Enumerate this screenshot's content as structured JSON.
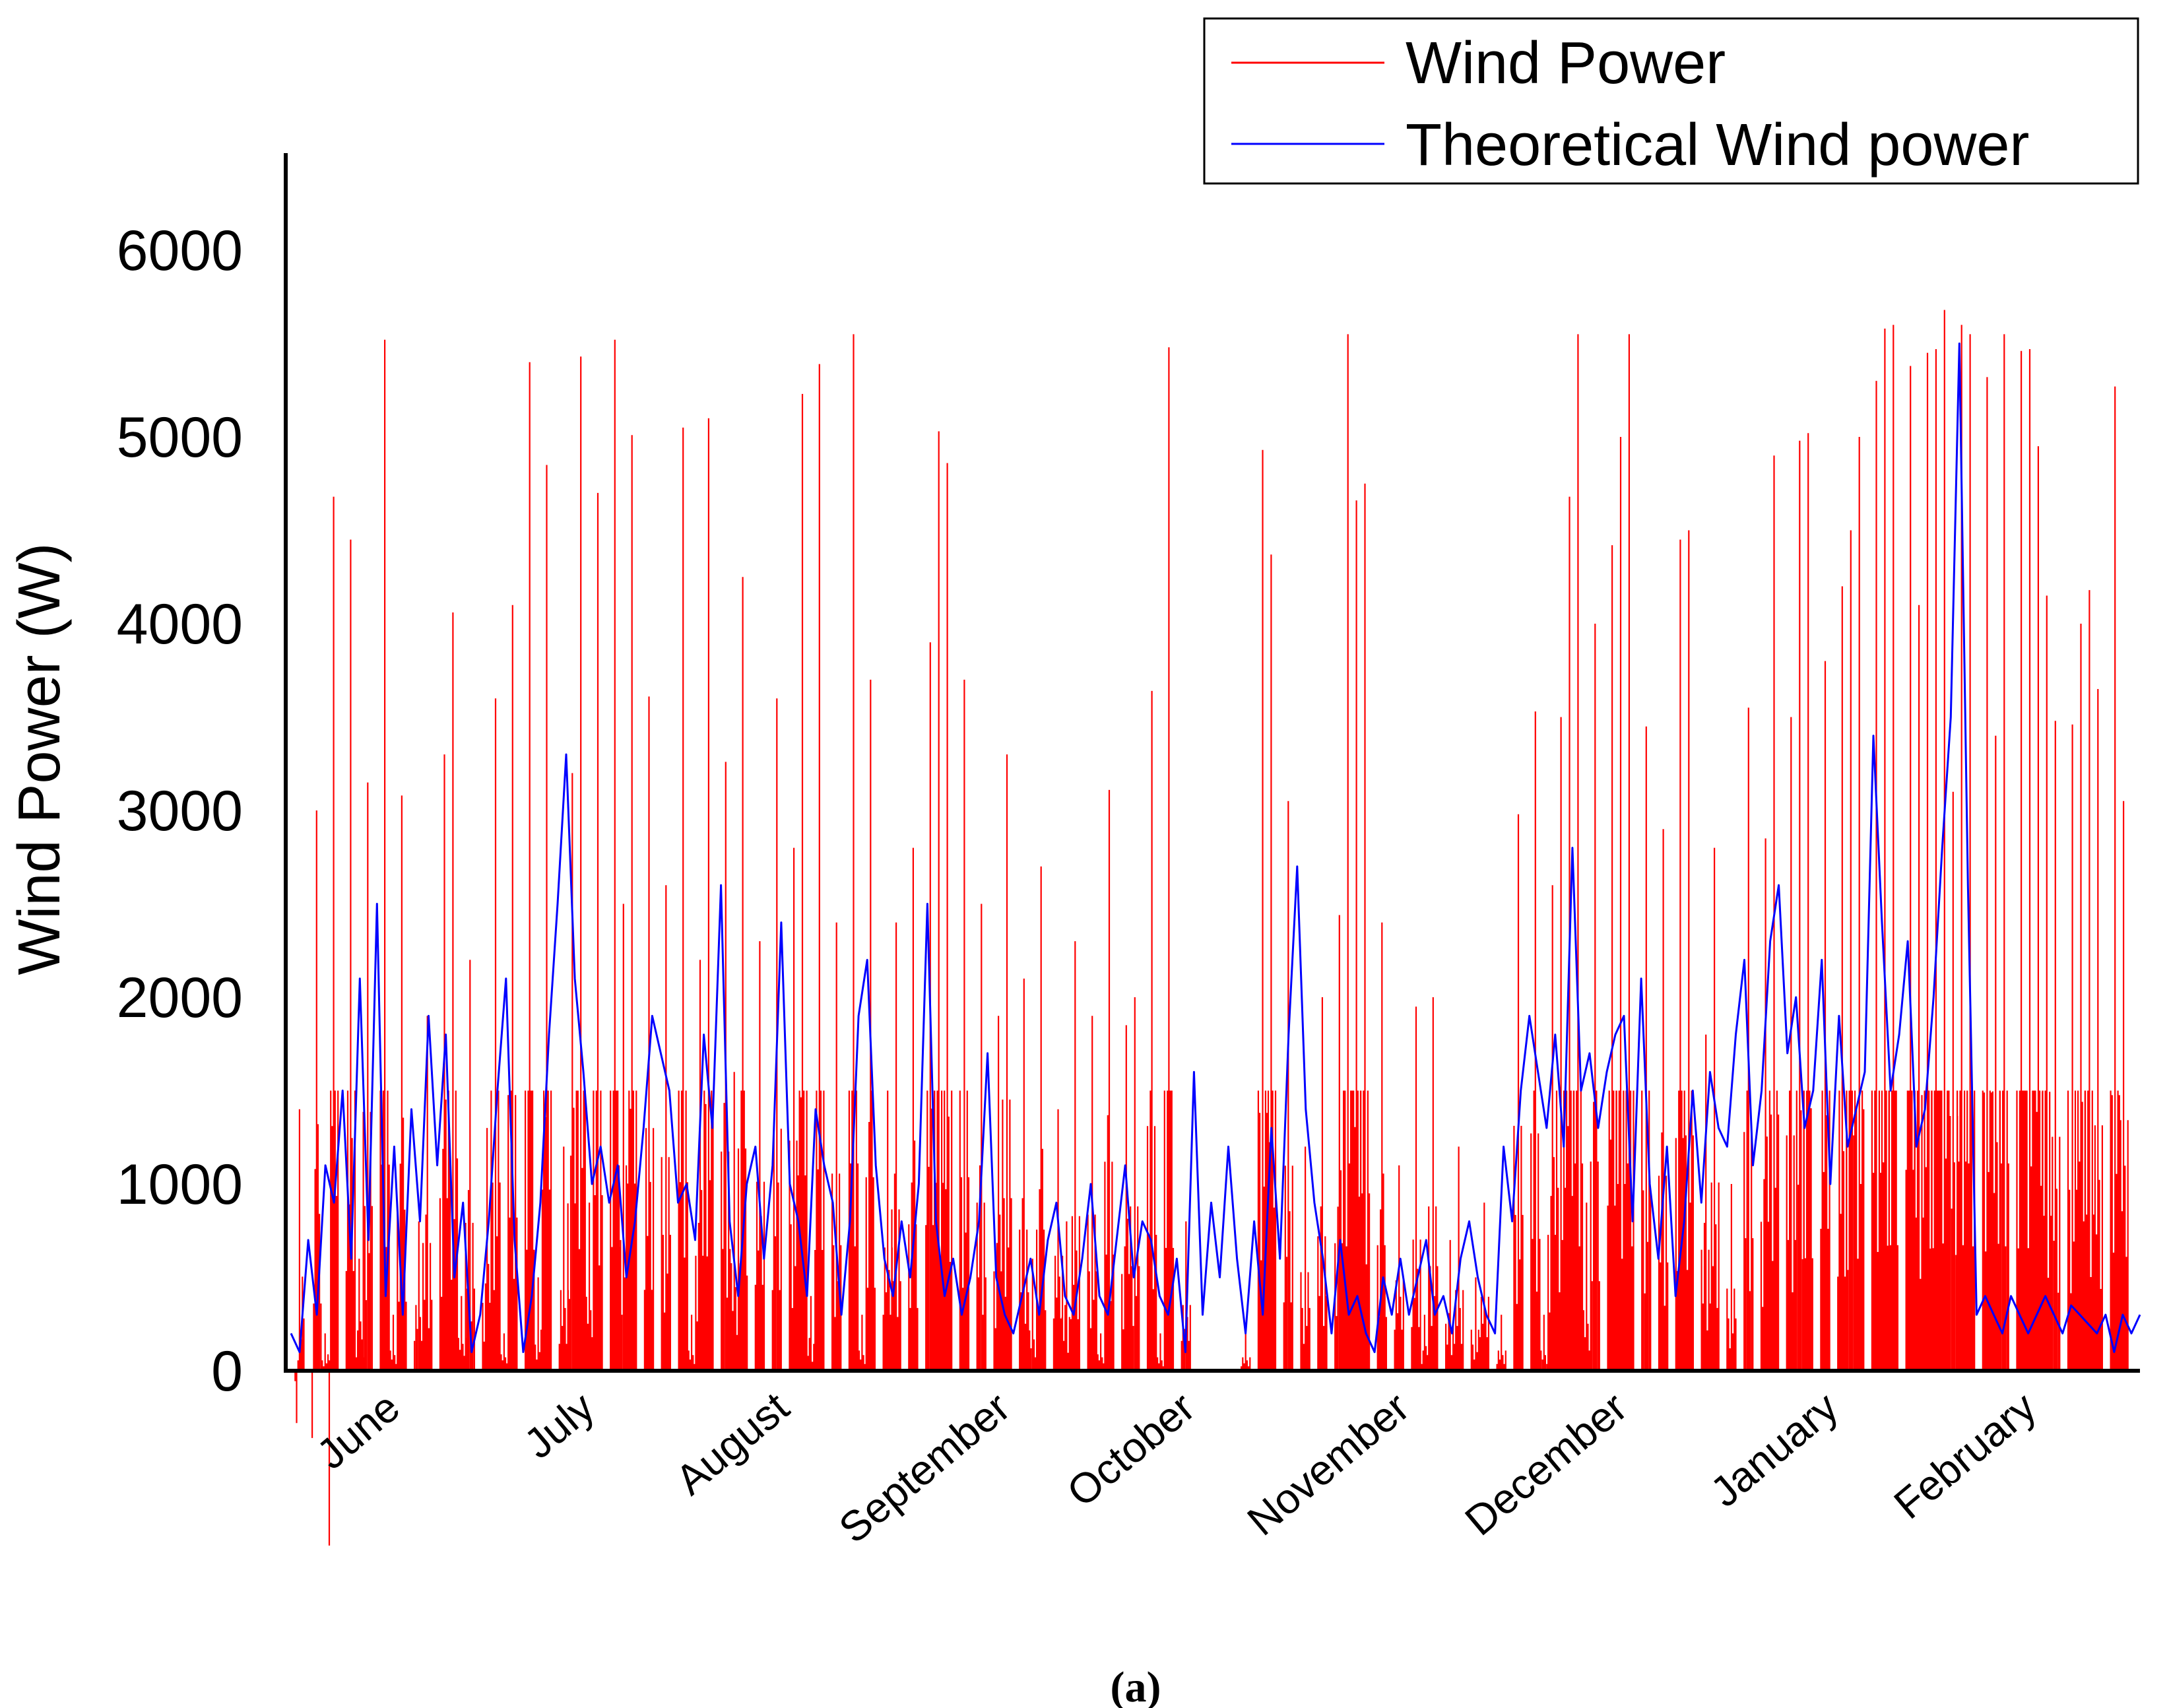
{
  "chart_data": {
    "type": "line",
    "ylabel": "Wind Power (W)",
    "ylim": [
      0,
      6500
    ],
    "yticks": [
      "0",
      "1000",
      "2000",
      "3000",
      "4000",
      "5000",
      "6000"
    ],
    "xlabel": "",
    "month_labels": [
      "June",
      "July",
      "August",
      "September",
      "October",
      "November",
      "December",
      "January",
      "February"
    ],
    "caption": "(a)",
    "legend_position": "top-right",
    "series": [
      {
        "name": "Wind Power",
        "color": "#ff0000",
        "description_level": "envelope",
        "monthly_peak_values": [
          5520,
          5500,
          5550,
          5480,
          5550,
          2000,
          5550,
          5600,
          5680
        ],
        "values": [
          0,
          1400,
          0,
          3000,
          200,
          4680,
          0,
          4450,
          600,
          3150,
          0,
          5520,
          300,
          3080,
          0,
          800,
          1900,
          0,
          3300,
          4060,
          400,
          2200,
          0,
          1300,
          3600,
          200,
          4100,
          0,
          5400,
          500,
          4850,
          0,
          1200,
          3200,
          5430,
          900,
          4700,
          0,
          5520,
          2500,
          5010,
          0,
          3610,
          0,
          2600,
          0,
          5050,
          300,
          2200,
          5100,
          0,
          3260,
          1600,
          4250,
          0,
          2300,
          0,
          3600,
          0,
          2800,
          5230,
          400,
          5390,
          0,
          2400,
          0,
          5550,
          300,
          3700,
          0,
          1500,
          2400,
          0,
          2800,
          0,
          3900,
          5030,
          4860,
          0,
          3700,
          0,
          2500,
          0,
          1900,
          3300,
          0,
          2100,
          600,
          2700,
          0,
          1400,
          800,
          2300,
          0,
          1900,
          200,
          3110,
          0,
          1850,
          2000,
          0,
          3640,
          200,
          5480,
          0,
          800,
          0,
          0,
          0,
          0,
          0,
          0,
          200,
          0,
          4930,
          4370,
          0,
          3050,
          0,
          1200,
          0,
          2000,
          0,
          2440,
          5550,
          4660,
          4750,
          0,
          2400,
          0,
          1100,
          0,
          1950,
          300,
          2000,
          0,
          700,
          1200,
          0,
          500,
          900,
          0,
          300,
          0,
          2980,
          0,
          3530,
          300,
          2600,
          3500,
          4680,
          5550,
          900,
          4000,
          0,
          4420,
          5000,
          5550,
          0,
          3450,
          0,
          2900,
          0,
          4450,
          4500,
          0,
          1800,
          2800,
          0,
          1000,
          0,
          3550,
          0,
          2850,
          4900,
          0,
          3500,
          4980,
          5020,
          0,
          3800,
          0,
          4200,
          4500,
          5000,
          0,
          5300,
          5580,
          5600,
          0,
          5380,
          4100,
          5450,
          5470,
          5680,
          3100,
          5600,
          5550,
          0,
          5320,
          3400,
          5550,
          0,
          5460,
          5470,
          4950,
          4150,
          3480,
          0,
          3460,
          4000,
          4180,
          3650,
          0,
          5270,
          3050,
          0
        ]
      },
      {
        "name": "Theoretical Wind power",
        "color": "#0000ff",
        "description_level": "envelope",
        "values": [
          200,
          100,
          700,
          300,
          1100,
          900,
          1500,
          600,
          2100,
          700,
          2500,
          400,
          1200,
          300,
          1400,
          800,
          1900,
          1100,
          1800,
          500,
          900,
          100,
          300,
          800,
          1500,
          2100,
          700,
          100,
          400,
          900,
          1800,
          2500,
          3300,
          2100,
          1600,
          1000,
          1200,
          900,
          1100,
          500,
          800,
          1300,
          1900,
          1700,
          1500,
          900,
          1000,
          700,
          1800,
          1300,
          2600,
          800,
          400,
          1000,
          1200,
          600,
          1100,
          2400,
          1000,
          800,
          400,
          1400,
          1100,
          900,
          300,
          800,
          1900,
          2200,
          1100,
          600,
          400,
          800,
          500,
          1000,
          2500,
          800,
          400,
          600,
          300,
          500,
          800,
          1700,
          500,
          300,
          200,
          400,
          600,
          300,
          700,
          900,
          400,
          300,
          600,
          1000,
          400,
          300,
          700,
          1100,
          500,
          800,
          700,
          400,
          300,
          600,
          100,
          1600,
          300,
          900,
          500,
          1200,
          600,
          200,
          800,
          300,
          1300,
          600,
          1800,
          2700,
          1400,
          900,
          600,
          200,
          700,
          300,
          400,
          200,
          100,
          500,
          300,
          600,
          300,
          500,
          700,
          300,
          400,
          200,
          600,
          800,
          500,
          300,
          200,
          1200,
          800,
          1500,
          1900,
          1600,
          1300,
          1800,
          1200,
          2800,
          1500,
          1700,
          1300,
          1600,
          1800,
          1900,
          800,
          2100,
          1000,
          600,
          1200,
          400,
          800,
          1500,
          900,
          1600,
          1300,
          1200,
          1800,
          2200,
          1100,
          1500,
          2300,
          2600,
          1700,
          2000,
          1300,
          1500,
          2200,
          1000,
          1900,
          1200,
          1400,
          1600,
          3400,
          2400,
          1500,
          1800,
          2300,
          1200,
          1400,
          2000,
          2800,
          3500,
          5500,
          2600,
          300,
          400,
          300,
          200,
          400,
          300,
          200,
          300,
          400,
          300,
          200,
          350,
          300,
          250,
          200,
          300,
          100,
          300,
          200,
          300
        ]
      }
    ]
  }
}
